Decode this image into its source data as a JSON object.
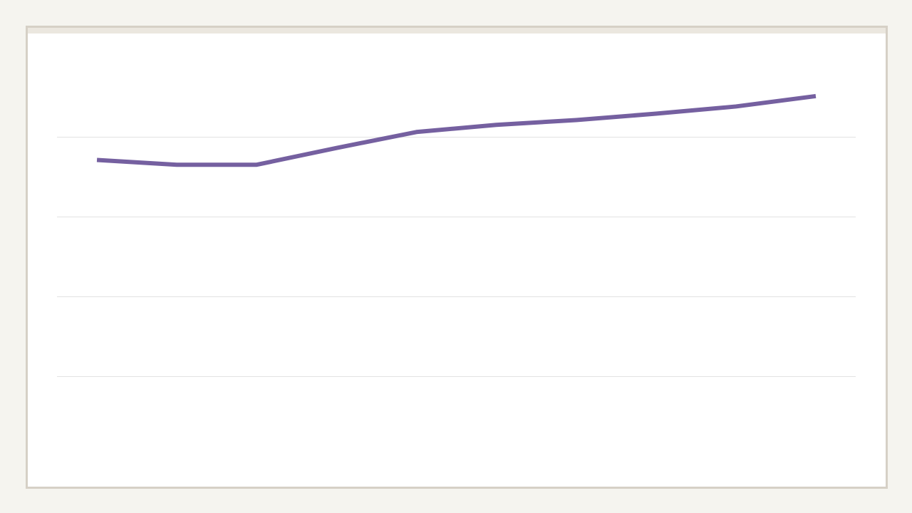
{
  "chart_data": {
    "type": "line",
    "categories": [
      null,
      null,
      null,
      null,
      null,
      null,
      null,
      null,
      null,
      null
    ],
    "values": [
      3.71,
      3.65,
      3.65,
      3.86,
      4.06,
      4.15,
      4.21,
      4.29,
      4.38,
      4.51
    ],
    "color": "#7560a0",
    "ylim": [
      0,
      5
    ],
    "yticks": [
      1,
      2,
      3,
      4
    ],
    "grid": true
  }
}
